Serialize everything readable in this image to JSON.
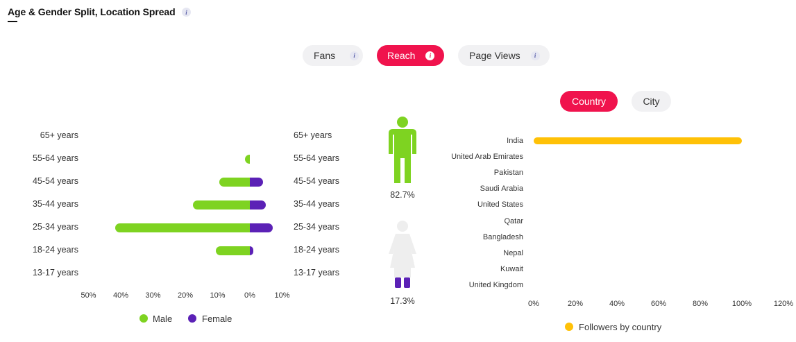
{
  "header": {
    "title": "Age & Gender Split, Location Spread",
    "info": "i"
  },
  "metric_tabs": [
    {
      "label": "Fans",
      "info": "i",
      "active": false
    },
    {
      "label": "Reach",
      "info": "i",
      "active": true
    },
    {
      "label": "Page Views",
      "info": "i",
      "active": false
    }
  ],
  "location_tabs": [
    {
      "label": "Country",
      "active": true
    },
    {
      "label": "City",
      "active": false
    }
  ],
  "age_gender": {
    "age_groups": [
      "65+ years",
      "55-64 years",
      "45-54 years",
      "35-44 years",
      "25-34 years",
      "18-24 years",
      "13-17 years"
    ],
    "male_pct": [
      0,
      1.6,
      9.5,
      17.6,
      41.8,
      10.5,
      0
    ],
    "female_pct": [
      0,
      0,
      4,
      5,
      7,
      1,
      0
    ],
    "x_ticks": [
      "50%",
      "40%",
      "30%",
      "20%",
      "10%",
      "0%",
      "10%"
    ],
    "legend": [
      {
        "label": "Male",
        "color": "#7ed321"
      },
      {
        "label": "Female",
        "color": "#5b21b6"
      }
    ]
  },
  "gender_split": {
    "male": {
      "value": "82.7%",
      "color": "#7ed321"
    },
    "female": {
      "value": "17.3%",
      "color": "#5b21b6"
    }
  },
  "chart_data": {
    "type": "bar",
    "orientation": "horizontal",
    "categories": [
      "India",
      "United Arab Emirates",
      "Pakistan",
      "Saudi Arabia",
      "United States",
      "Qatar",
      "Bangladesh",
      "Nepal",
      "Kuwait",
      "United Kingdom"
    ],
    "series": [
      {
        "name": "Followers by country",
        "color": "#ffc107",
        "values": [
          100,
          0,
          0,
          0,
          0,
          0,
          0,
          0,
          0,
          0
        ]
      }
    ],
    "x_ticks": [
      "0%",
      "20%",
      "40%",
      "60%",
      "80%",
      "100%",
      "120%"
    ],
    "xlim": [
      0,
      120
    ],
    "legend": "bottom"
  }
}
